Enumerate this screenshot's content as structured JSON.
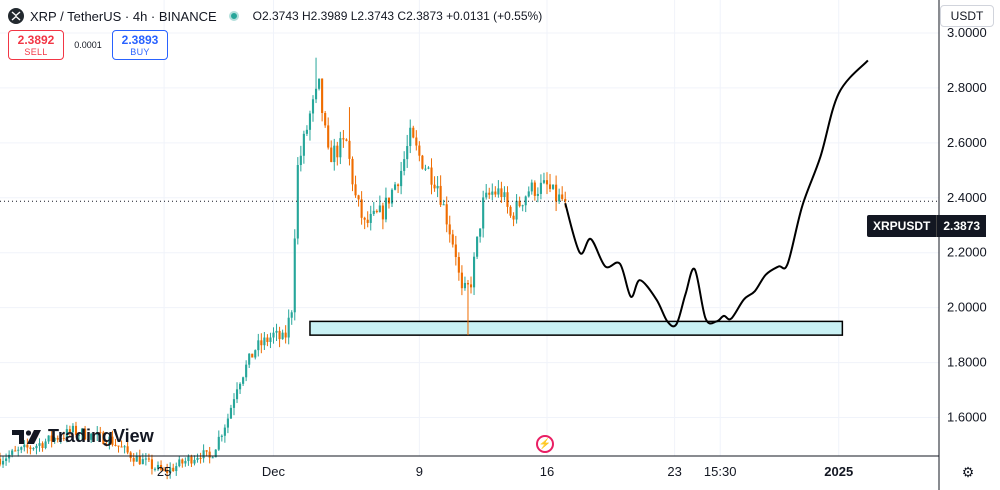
{
  "header": {
    "symbol": "XRP / TetherUS · 4h · BINANCE",
    "ohlc": "O2.3743 H2.3989 L2.3743 C2.3873 +0.0131 (+0.55%)"
  },
  "trade": {
    "sell_price": "2.3892",
    "sell_label": "SELL",
    "spread": "0.0001",
    "buy_price": "2.3893",
    "buy_label": "BUY"
  },
  "currency": "USDT",
  "price_label": {
    "pair": "XRPUSDT",
    "value": "2.3873"
  },
  "logo": "TradingView",
  "colors": {
    "up": "#26a69a",
    "down": "#ef6c00",
    "zone_fill": "#c9f1f4",
    "path": "#000000"
  },
  "chart_data": {
    "type": "candlestick",
    "y_axis": {
      "range": [
        1.46,
        3.12
      ],
      "ticks": [
        "3.0000",
        "2.8000",
        "2.6000",
        "2.4000",
        "2.2000",
        "2.0000",
        "1.8000",
        "1.6000"
      ],
      "tick_values": [
        3.0,
        2.8,
        2.6,
        2.4,
        2.2,
        2.0,
        1.8,
        1.6
      ]
    },
    "x_axis": {
      "labels": [
        "25",
        "Dec",
        "9",
        "16",
        "23",
        "15:30",
        "2025"
      ],
      "label_days": [
        -6,
        0,
        8,
        15,
        22,
        24.5,
        31
      ],
      "day_range": [
        -15,
        36.5
      ]
    },
    "last_price": 2.3873,
    "anchors": [
      [
        -15,
        1.45
      ],
      [
        -13,
        1.5
      ],
      [
        -11,
        1.55
      ],
      [
        -9,
        1.52
      ],
      [
        -8,
        1.47
      ],
      [
        -6,
        1.4
      ],
      [
        -4,
        1.47
      ],
      [
        -3.5,
        1.45
      ],
      [
        -2.5,
        1.6
      ],
      [
        -2,
        1.72
      ],
      [
        -1,
        1.85
      ],
      [
        0,
        1.9
      ],
      [
        0.6,
        1.88
      ],
      [
        1,
        2.0
      ],
      [
        1.3,
        2.5
      ],
      [
        2,
        2.7
      ],
      [
        2.5,
        2.8
      ],
      [
        3,
        2.55
      ],
      [
        4,
        2.6
      ],
      [
        4.5,
        2.4
      ],
      [
        5,
        2.3
      ],
      [
        6,
        2.35
      ],
      [
        7,
        2.5
      ],
      [
        7.5,
        2.62
      ],
      [
        8,
        2.55
      ],
      [
        9,
        2.45
      ],
      [
        10,
        2.2
      ],
      [
        10.3,
        2.05
      ],
      [
        10.8,
        2.08
      ],
      [
        11.5,
        2.38
      ],
      [
        12,
        2.42
      ],
      [
        12.5,
        2.42
      ],
      [
        13,
        2.33
      ],
      [
        14,
        2.43
      ],
      [
        15,
        2.44
      ],
      [
        15.5,
        2.4
      ],
      [
        16,
        2.39
      ]
    ],
    "spikes": [
      {
        "day": 10.6,
        "low": 1.9
      },
      {
        "day": 2.4,
        "high": 2.91
      },
      {
        "day": 4.1,
        "high": 2.73
      }
    ],
    "support_zone": {
      "day_from": 2.0,
      "day_to": 31.2,
      "price_low": 1.9,
      "price_high": 1.95
    },
    "projection": [
      [
        16.0,
        2.38
      ],
      [
        16.8,
        2.2
      ],
      [
        17.4,
        2.25
      ],
      [
        18.2,
        2.15
      ],
      [
        19.0,
        2.16
      ],
      [
        19.6,
        2.04
      ],
      [
        20.1,
        2.1
      ],
      [
        21.0,
        2.03
      ],
      [
        21.6,
        1.95
      ],
      [
        22.1,
        1.94
      ],
      [
        22.6,
        2.05
      ],
      [
        23.1,
        2.14
      ],
      [
        23.7,
        1.96
      ],
      [
        24.3,
        1.95
      ],
      [
        24.7,
        1.97
      ],
      [
        25.1,
        1.96
      ],
      [
        25.8,
        2.03
      ],
      [
        26.4,
        2.06
      ],
      [
        27.0,
        2.12
      ],
      [
        27.7,
        2.15
      ],
      [
        28.2,
        2.16
      ],
      [
        29.0,
        2.37
      ],
      [
        30.0,
        2.55
      ],
      [
        31.0,
        2.78
      ],
      [
        32.6,
        2.9
      ]
    ]
  }
}
